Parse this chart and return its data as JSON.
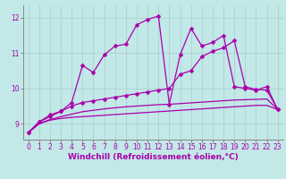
{
  "xlabel": "Windchill (Refroidissement éolien,°C)",
  "background_color": "#c2e8e8",
  "grid_color": "#aacccc",
  "line_color": "#aa00aa",
  "xlim": [
    -0.5,
    23.5
  ],
  "ylim": [
    8.55,
    12.35
  ],
  "yticks": [
    9,
    10,
    11,
    12
  ],
  "xticks": [
    0,
    1,
    2,
    3,
    4,
    5,
    6,
    7,
    8,
    9,
    10,
    11,
    12,
    13,
    14,
    15,
    16,
    17,
    18,
    19,
    20,
    21,
    22,
    23
  ],
  "series": [
    {
      "x": [
        0,
        1,
        2,
        3,
        4,
        5,
        6,
        7,
        8,
        9,
        10,
        11,
        12,
        13,
        14,
        15,
        16,
        17,
        18,
        19,
        20,
        21,
        22,
        23
      ],
      "y": [
        8.75,
        9.05,
        9.25,
        9.35,
        9.6,
        10.65,
        10.45,
        10.95,
        11.2,
        11.25,
        11.8,
        11.95,
        12.05,
        9.55,
        10.95,
        11.7,
        11.2,
        11.3,
        11.5,
        10.05,
        10.0,
        9.95,
        10.05,
        9.4
      ],
      "marker": true,
      "linewidth": 0.9
    },
    {
      "x": [
        0,
        1,
        2,
        3,
        4,
        5,
        6,
        7,
        8,
        9,
        10,
        11,
        12,
        13,
        14,
        15,
        16,
        17,
        18,
        19,
        20,
        21,
        22,
        23
      ],
      "y": [
        8.75,
        9.05,
        9.2,
        9.35,
        9.5,
        9.6,
        9.65,
        9.7,
        9.75,
        9.8,
        9.85,
        9.9,
        9.95,
        10.0,
        10.4,
        10.5,
        10.9,
        11.05,
        11.15,
        11.35,
        10.05,
        9.97,
        9.95,
        9.4
      ],
      "marker": true,
      "linewidth": 0.9
    },
    {
      "x": [
        0,
        1,
        2,
        3,
        4,
        5,
        6,
        7,
        8,
        9,
        10,
        11,
        12,
        13,
        14,
        15,
        16,
        17,
        18,
        19,
        20,
        21,
        22,
        23
      ],
      "y": [
        8.75,
        9.0,
        9.12,
        9.2,
        9.27,
        9.34,
        9.38,
        9.42,
        9.45,
        9.48,
        9.5,
        9.52,
        9.54,
        9.55,
        9.57,
        9.59,
        9.61,
        9.63,
        9.65,
        9.67,
        9.68,
        9.69,
        9.7,
        9.4
      ],
      "marker": false,
      "linewidth": 0.9
    },
    {
      "x": [
        0,
        1,
        2,
        3,
        4,
        5,
        6,
        7,
        8,
        9,
        10,
        11,
        12,
        13,
        14,
        15,
        16,
        17,
        18,
        19,
        20,
        21,
        22,
        23
      ],
      "y": [
        8.75,
        9.0,
        9.1,
        9.15,
        9.18,
        9.2,
        9.22,
        9.24,
        9.26,
        9.28,
        9.3,
        9.32,
        9.34,
        9.36,
        9.38,
        9.4,
        9.42,
        9.44,
        9.46,
        9.48,
        9.5,
        9.52,
        9.52,
        9.4
      ],
      "marker": false,
      "linewidth": 0.9
    }
  ],
  "marker_style": "D",
  "marker_size": 2.5,
  "tick_fontsize": 5.5,
  "xlabel_fontsize": 6.5
}
